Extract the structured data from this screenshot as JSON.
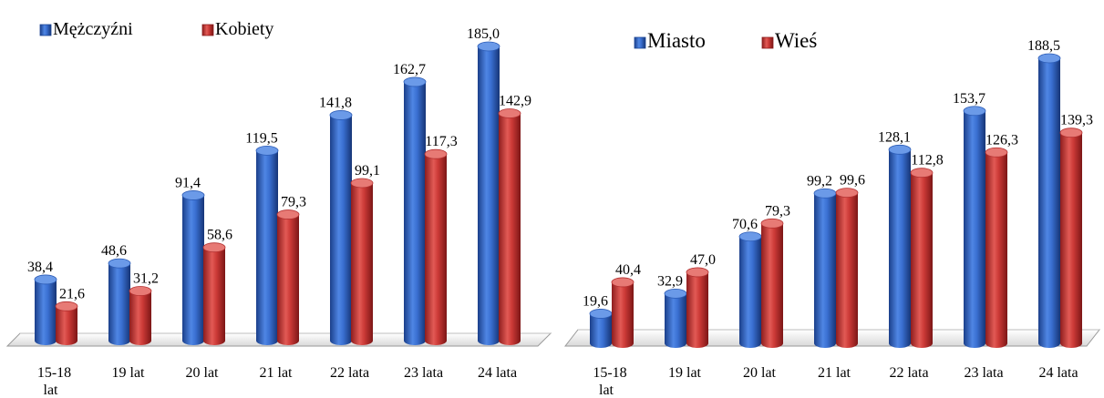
{
  "chart_data": [
    {
      "type": "bar",
      "title": "",
      "xlabel": "",
      "ylabel": "",
      "categories": [
        "15-18 lat",
        "19 lat",
        "20 lat",
        "21 lat",
        "22 lata",
        "23 lata",
        "24 lata"
      ],
      "series": [
        {
          "name": "Mężczyźni",
          "values": [
            38.4,
            48.6,
            91.4,
            119.5,
            141.8,
            162.7,
            185.0
          ],
          "labels": [
            "38,4",
            "48,6",
            "91,4",
            "119,5",
            "141,8",
            "162,7",
            "185,0"
          ],
          "color": "#2e63c6"
        },
        {
          "name": "Kobiety",
          "values": [
            21.6,
            31.2,
            58.6,
            79.3,
            99.1,
            117.3,
            142.9
          ],
          "labels": [
            "21,6",
            "31,2",
            "58,6",
            "79,3",
            "99,1",
            "117,3",
            "142,9"
          ],
          "color": "#cc3535"
        }
      ],
      "ylim": [
        0,
        185
      ],
      "grid": false,
      "legend": "top-left"
    },
    {
      "type": "bar",
      "title": "",
      "xlabel": "",
      "ylabel": "",
      "categories": [
        "15-18 lat",
        "19 lat",
        "20 lat",
        "21 lat",
        "22 lata",
        "23 lata",
        "24 lata"
      ],
      "series": [
        {
          "name": "Miasto",
          "values": [
            19.6,
            32.9,
            70.6,
            99.2,
            128.1,
            153.7,
            188.5
          ],
          "labels": [
            "19,6",
            "32,9",
            "70,6",
            "99,2",
            "128,1",
            "153,7",
            "188,5"
          ],
          "color": "#2e63c6"
        },
        {
          "name": "Wieś",
          "values": [
            40.4,
            47.0,
            79.3,
            99.6,
            112.8,
            126.3,
            139.3
          ],
          "labels": [
            "40,4",
            "47,0",
            "79,3",
            "99,6",
            "112,8",
            "126,3",
            "139,3"
          ],
          "color": "#cc3535"
        }
      ],
      "ylim": [
        0,
        188.5
      ],
      "grid": false,
      "legend": "top-left"
    }
  ]
}
